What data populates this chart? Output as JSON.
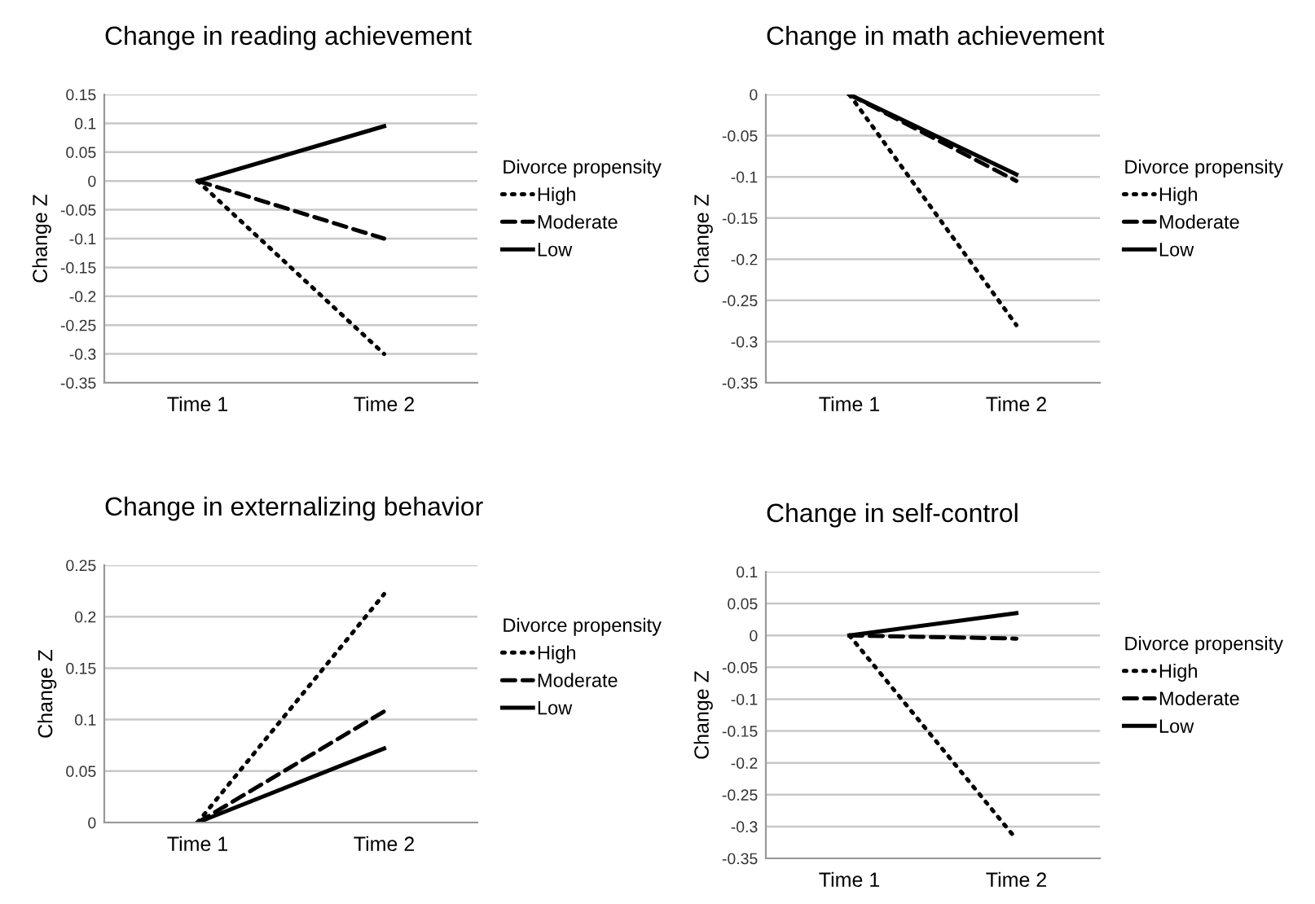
{
  "chart_data": [
    {
      "type": "line",
      "title": "Change in reading achievement",
      "ylabel": "Change Z",
      "legend_title": "Divorce propensity",
      "legend": "right",
      "grid": "y",
      "categories": [
        "Time 1",
        "Time 2"
      ],
      "ylim": [
        -0.35,
        0.15
      ],
      "yticks": [
        0.15,
        0.1,
        0.05,
        0,
        -0.05,
        -0.1,
        -0.15,
        -0.2,
        -0.25,
        -0.3,
        -0.35
      ],
      "series": [
        {
          "name": "High",
          "color": "#000000",
          "line_style": "dotted",
          "values": [
            0,
            -0.3
          ]
        },
        {
          "name": "Moderate",
          "color": "#000000",
          "line_style": "dashed",
          "values": [
            0,
            -0.1
          ]
        },
        {
          "name": "Low",
          "color": "#000000",
          "line_style": "solid",
          "values": [
            0,
            0.095
          ]
        }
      ]
    },
    {
      "type": "line",
      "title": "Change in math achievement",
      "ylabel": "Change Z",
      "legend_title": "Divorce propensity",
      "legend": "right",
      "grid": "y",
      "categories": [
        "Time 1",
        "Time 2"
      ],
      "ylim": [
        -0.35,
        0
      ],
      "yticks": [
        0,
        -0.05,
        -0.1,
        -0.15,
        -0.2,
        -0.25,
        -0.3,
        -0.35
      ],
      "series": [
        {
          "name": "High",
          "color": "#000000",
          "line_style": "dotted",
          "values": [
            0,
            -0.28
          ]
        },
        {
          "name": "Moderate",
          "color": "#000000",
          "line_style": "dashed",
          "values": [
            0,
            -0.105
          ]
        },
        {
          "name": "Low",
          "color": "#000000",
          "line_style": "solid",
          "values": [
            0,
            -0.097
          ]
        }
      ]
    },
    {
      "type": "line",
      "title": "Change in externalizing behavior",
      "ylabel": "Change Z",
      "legend_title": "Divorce propensity",
      "legend": "right",
      "grid": "y",
      "categories": [
        "Time 1",
        "Time 2"
      ],
      "ylim": [
        0,
        0.25
      ],
      "yticks": [
        0.25,
        0.2,
        0.15,
        0.1,
        0.05,
        0
      ],
      "series": [
        {
          "name": "High",
          "color": "#000000",
          "line_style": "dotted",
          "values": [
            0,
            0.222
          ]
        },
        {
          "name": "Moderate",
          "color": "#000000",
          "line_style": "dashed",
          "values": [
            0,
            0.108
          ]
        },
        {
          "name": "Low",
          "color": "#000000",
          "line_style": "solid",
          "values": [
            0,
            0.072
          ]
        }
      ]
    },
    {
      "type": "line",
      "title": "Change in self-control",
      "ylabel": "Change Z",
      "legend_title": "Divorce propensity",
      "legend": "right",
      "grid": "y",
      "categories": [
        "Time 1",
        "Time 2"
      ],
      "ylim": [
        -0.35,
        0.1
      ],
      "yticks": [
        0.1,
        0.05,
        0,
        -0.05,
        -0.1,
        -0.15,
        -0.2,
        -0.25,
        -0.3,
        -0.35
      ],
      "series": [
        {
          "name": "High",
          "color": "#000000",
          "line_style": "dotted",
          "values": [
            0,
            -0.32
          ]
        },
        {
          "name": "Moderate",
          "color": "#000000",
          "line_style": "dashed",
          "values": [
            0,
            -0.005
          ]
        },
        {
          "name": "Low",
          "color": "#000000",
          "line_style": "solid",
          "values": [
            0,
            0.035
          ]
        }
      ]
    }
  ]
}
